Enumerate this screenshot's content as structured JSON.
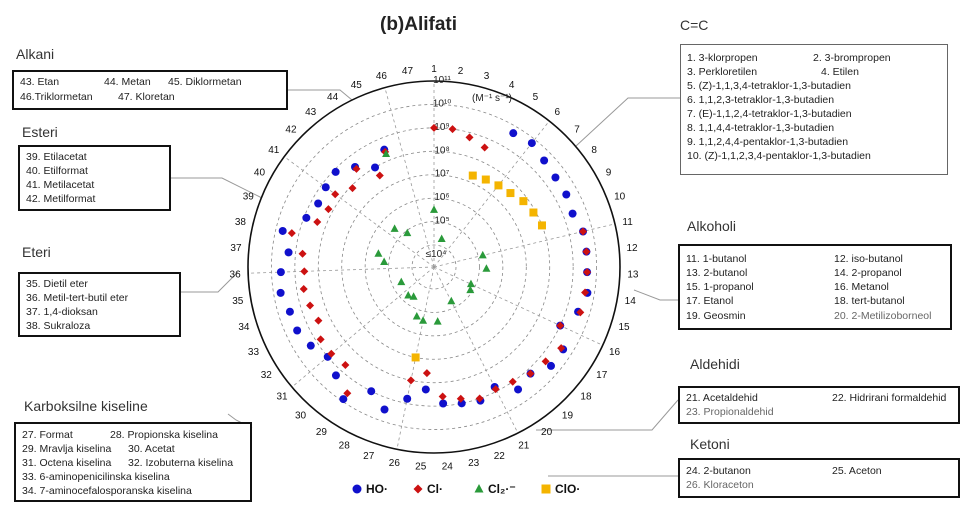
{
  "title": "(b)Alifati",
  "groups": {
    "alkani": {
      "title": "Alkani",
      "items": [
        "43. Etan",
        "44. Metan",
        "45. Diklormetan",
        "46.Triklormetan",
        "47. Kloretan"
      ]
    },
    "esteri": {
      "title": "Esteri",
      "items": [
        "39. Etilacetat",
        "40. Etilformat",
        "41. Metilacetat",
        "42. Metilformat"
      ]
    },
    "eteri": {
      "title": "Eteri",
      "items": [
        "35. Dietil eter",
        "36. Metil-tert-butil eter",
        "37. 1,4-dioksan",
        "38. Sukraloza"
      ]
    },
    "karboksilne": {
      "title": "Karboksilne kiseline",
      "items": [
        "27. Format",
        "28. Propionska kiselina",
        "29. Mravlja kiselina",
        "30. Acetat",
        "31. Octena kiselina",
        "32. Izobuterna kiselina",
        "33. 6-aminopenicilinska kiselina",
        "34. 7-aminocefalosporanska kiselina"
      ]
    },
    "cc": {
      "title": "C=C",
      "items": [
        "1. 3-klorpropen",
        "2. 3-brompropen",
        "3. Perkloretilen",
        "4. Etilen",
        "5. (Z)-1,1,3,4-tetraklor-1,3-butadien",
        "6. 1,1,2,3-tetraklor-1,3-butadien",
        "7. (E)-1,1,2,4-tetraklor-1,3-butadien",
        "8. 1,1,4,4-tetraklor-1,3-butadien",
        "9. 1,1,2,4,4-pentaklor-1,3-butadien",
        "10. (Z)-1,1,2,3,4-pentaklor-1,3-butadien"
      ]
    },
    "alkoholi": {
      "title": "Alkoholi",
      "items": [
        "11. 1-butanol",
        "12. iso-butanol",
        "13. 2-butanol",
        "14. 2-propanol",
        "15. 1-propanol",
        "16. Metanol",
        "17. Etanol",
        "18. tert-butanol",
        "19.  Geosmin",
        "20. 2-Metilizoborneol"
      ]
    },
    "aldehidi": {
      "title": "Aldehidi",
      "items": [
        "21. Acetaldehid",
        "22. Hidrirani formaldehid",
        "23. Propionaldehid"
      ]
    },
    "ketoni": {
      "title": "Ketoni",
      "items": [
        "24. 2-butanon",
        "25. Aceton",
        "26. Kloraceton"
      ]
    }
  },
  "chart_data": {
    "type": "scatter",
    "coordinate_system": "polar",
    "radial_scale": "log",
    "radial_unit_label": "(M⁻¹ s⁻¹)",
    "radial_axis_labels": [
      "≤10⁴",
      "10⁵",
      "10⁶",
      "10⁷",
      "10⁸",
      "10⁹",
      "10¹⁰",
      "10¹¹"
    ],
    "radial_range_log10": [
      4,
      11
    ],
    "angular_categories": [
      "1",
      "2",
      "3",
      "4",
      "5",
      "6",
      "7",
      "8",
      "9",
      "10",
      "11",
      "12",
      "13",
      "14",
      "15",
      "16",
      "17",
      "18",
      "19",
      "20",
      "21",
      "22",
      "23",
      "24",
      "25",
      "26",
      "27",
      "28",
      "29",
      "30",
      "31",
      "32",
      "33",
      "34",
      "35",
      "36",
      "37",
      "38",
      "39",
      "40",
      "41",
      "42",
      "43",
      "44",
      "45",
      "46",
      "47"
    ],
    "series": [
      {
        "name": "HO·",
        "color": "#1010cc",
        "marker": "circle",
        "points": [
          [
            5,
            9.7
          ],
          [
            6,
            9.8
          ],
          [
            7,
            9.6
          ],
          [
            8,
            9.5
          ],
          [
            9,
            9.5
          ],
          [
            10,
            9.4
          ],
          [
            11,
            9.6
          ],
          [
            12,
            9.6
          ],
          [
            13,
            9.6
          ],
          [
            14,
            9.7
          ],
          [
            15,
            9.5
          ],
          [
            16,
            9.0
          ],
          [
            17,
            9.6
          ],
          [
            18,
            9.6
          ],
          [
            19,
            9.2
          ],
          [
            20,
            9.4
          ],
          [
            21,
            8.8
          ],
          [
            22,
            9.1
          ],
          [
            23,
            9.0
          ],
          [
            24,
            8.9
          ],
          [
            25,
            8.3
          ],
          [
            26,
            8.8
          ],
          [
            27,
            9.5
          ],
          [
            28,
            9.0
          ],
          [
            29,
            9.9
          ],
          [
            30,
            9.3
          ],
          [
            31,
            9.0
          ],
          [
            32,
            9.3
          ],
          [
            33,
            9.5
          ],
          [
            34,
            9.5
          ],
          [
            35,
            9.7
          ],
          [
            36,
            9.6
          ],
          [
            37,
            9.3
          ],
          [
            38,
            9.7
          ],
          [
            39,
            8.9
          ],
          [
            40,
            8.7
          ],
          [
            41,
            8.8
          ],
          [
            42,
            8.9
          ],
          [
            43,
            8.5
          ],
          [
            44,
            8.0
          ],
          [
            45,
            8.5
          ]
        ]
      },
      {
        "name": "Cl·",
        "color": "#cc1111",
        "marker": "diamond",
        "points": [
          [
            1,
            9.0
          ],
          [
            2,
            9.0
          ],
          [
            3,
            8.8
          ],
          [
            4,
            8.6
          ],
          [
            11,
            9.6
          ],
          [
            12,
            9.6
          ],
          [
            13,
            9.6
          ],
          [
            14,
            9.6
          ],
          [
            15,
            9.6
          ],
          [
            16,
            9.0
          ],
          [
            17,
            9.5
          ],
          [
            18,
            9.3
          ],
          [
            19,
            9.2
          ],
          [
            20,
            9.0
          ],
          [
            21,
            8.9
          ],
          [
            22,
            9.0
          ],
          [
            23,
            8.8
          ],
          [
            24,
            8.6
          ],
          [
            25,
            7.6
          ],
          [
            26,
            8.0
          ],
          [
            29,
            9.6
          ],
          [
            30,
            8.7
          ],
          [
            31,
            8.8
          ],
          [
            32,
            8.8
          ],
          [
            33,
            8.5
          ],
          [
            34,
            8.6
          ],
          [
            35,
            8.7
          ],
          [
            36,
            8.6
          ],
          [
            37,
            8.7
          ],
          [
            38,
            9.3
          ],
          [
            39,
            8.4
          ],
          [
            40,
            8.2
          ],
          [
            41,
            8.3
          ],
          [
            42,
            7.9
          ],
          [
            43,
            8.4
          ],
          [
            44,
            7.6
          ],
          [
            45,
            8.4
          ]
        ]
      },
      {
        "name": "Cl₂·⁻",
        "color": "#2a9a3a",
        "marker": "triangle",
        "points": [
          [
            1,
            5.5
          ],
          [
            3,
            4.3
          ],
          [
            11,
            5.2
          ],
          [
            13,
            5.3
          ],
          [
            16,
            4.8
          ],
          [
            17,
            4.9
          ],
          [
            21,
            4.7
          ],
          [
            24,
            5.4
          ],
          [
            26,
            5.4
          ],
          [
            27,
            5.3
          ],
          [
            29,
            4.6
          ],
          [
            30,
            4.7
          ],
          [
            33,
            4.6
          ],
          [
            37,
            5.2
          ],
          [
            38,
            5.5
          ],
          [
            42,
            5.4
          ],
          [
            43,
            4.9
          ],
          [
            45,
            8.3
          ]
        ]
      },
      {
        "name": "ClO·",
        "color": "#f4b400",
        "marker": "square",
        "points": [
          [
            4,
            7.3
          ],
          [
            5,
            7.4
          ],
          [
            6,
            7.5
          ],
          [
            7,
            7.6
          ],
          [
            8,
            7.8
          ],
          [
            9,
            7.9
          ],
          [
            10,
            8.0
          ],
          [
            26,
            7.0
          ]
        ]
      }
    ]
  }
}
